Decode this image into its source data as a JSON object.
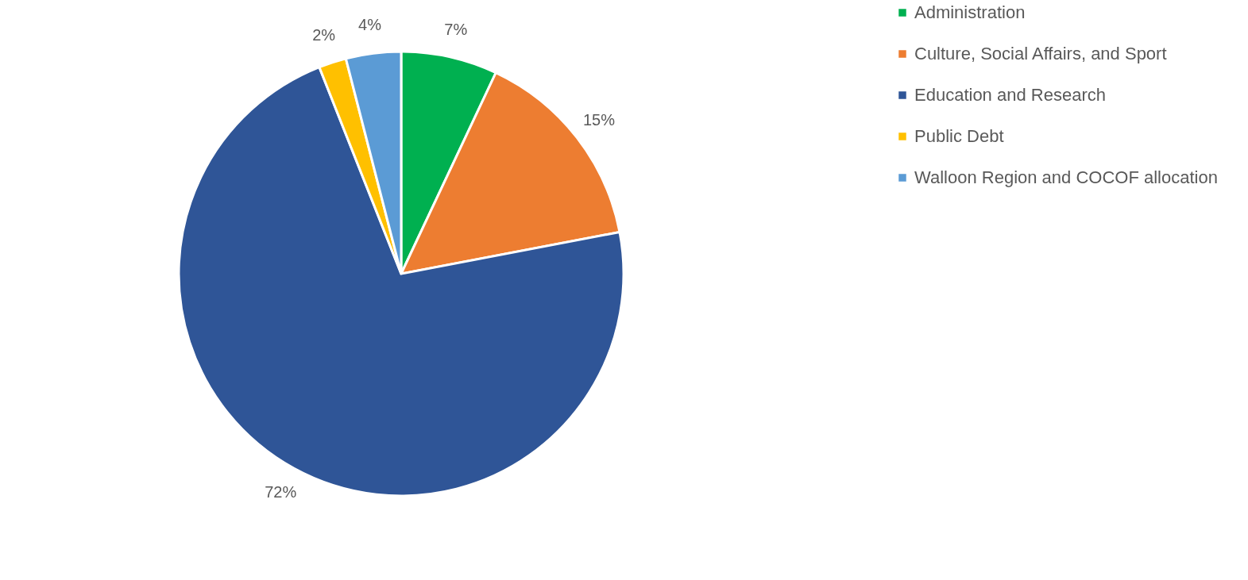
{
  "chart_data": {
    "type": "pie",
    "categories": [
      "Administration",
      "Culture, Social Affairs, and Sport",
      "Education and Research",
      "Public Debt",
      "Walloon Region and COCOF allocation"
    ],
    "values": [
      7,
      15,
      72,
      2,
      4
    ],
    "colors": [
      "#00b050",
      "#ed7d31",
      "#2f5597",
      "#ffc000",
      "#5b9bd5"
    ],
    "value_labels": [
      "7%",
      "15%",
      "72%",
      "2%",
      "4%"
    ],
    "legend": "right"
  }
}
